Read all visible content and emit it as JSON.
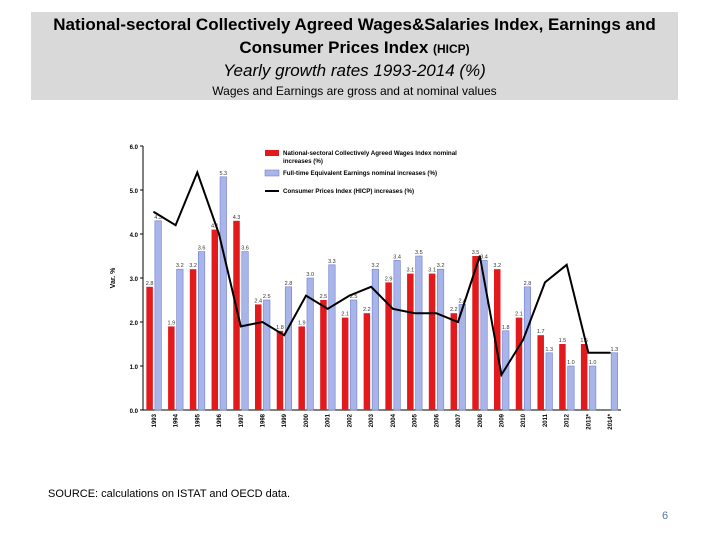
{
  "slide": {
    "title_line1": "National-sectoral Collectively Agreed Wages&Salaries Index, Earnings and",
    "title_line2": "Consumer Prices Index",
    "title_line2_small": "(HICP)",
    "subtitle": "Yearly growth rates 1993-2014 (%)",
    "note": "Wages and Earnings are gross and at nominal values",
    "source": "SOURCE: calculations on ISTAT and OECD data.",
    "page_number": "6"
  },
  "chart_data": {
    "type": "bar",
    "ylabel": "Var. %",
    "ylim": [
      0,
      6
    ],
    "yticks": [
      "0.0",
      "1.0",
      "2.0",
      "3.0",
      "4.0",
      "5.0",
      "6.0"
    ],
    "grid": false,
    "legend_position": "top-right",
    "categories": [
      "1993",
      "1994",
      "1995",
      "1996",
      "1997",
      "1998",
      "1999",
      "2000",
      "2001",
      "2002",
      "2003",
      "2004",
      "2005",
      "2006",
      "2007",
      "2008",
      "2009",
      "2010",
      "2011",
      "2012",
      "2013*",
      "2014*"
    ],
    "series": [
      {
        "name": "National-sectoral Collectively Agreed Wages Index nominal increases (%)",
        "type": "bar",
        "color": "#e31a1c",
        "values": [
          2.8,
          1.9,
          3.2,
          4.1,
          4.3,
          2.4,
          1.8,
          1.9,
          2.5,
          2.1,
          2.2,
          2.9,
          3.1,
          3.1,
          2.2,
          3.5,
          3.2,
          2.1,
          1.7,
          1.5,
          1.5,
          null
        ],
        "labels": [
          "2.8",
          "1.9",
          "3.2",
          "4.1",
          "4.3",
          "2.4",
          "1.8",
          "1.9",
          "2.5",
          "2.1",
          "2.2",
          "2.9",
          "3.1",
          "3.1",
          "2.2",
          "3.5",
          "3.2",
          "2.1",
          "1.7",
          "1.5",
          "1.5",
          ""
        ]
      },
      {
        "name": "Full-time Equivalent Earnings nominal increases (%)",
        "type": "bar",
        "color": "#a9b4e8",
        "values": [
          4.3,
          3.2,
          3.6,
          5.3,
          3.6,
          2.5,
          2.8,
          3.0,
          3.3,
          2.5,
          3.2,
          3.4,
          3.5,
          3.2,
          2.4,
          3.4,
          1.8,
          2.8,
          1.3,
          1.0,
          1.0,
          1.3
        ],
        "labels": [
          "4.3",
          "3.2",
          "3.6",
          "5.3",
          "3.6",
          "2.5",
          "2.8",
          "3.0",
          "3.3",
          "2.5",
          "3.2",
          "3.4",
          "3.5",
          "3.2",
          "2.4",
          "3.4",
          "1.8",
          "2.8",
          "1.3",
          "1.0",
          "1.0",
          "1.3"
        ]
      },
      {
        "name": "Consumer Prices Index (HICP) increases (%)",
        "type": "line",
        "color": "#000000",
        "values": [
          4.5,
          4.2,
          5.4,
          4.0,
          1.9,
          2.0,
          1.7,
          2.6,
          2.3,
          2.6,
          2.8,
          2.3,
          2.2,
          2.2,
          2.0,
          3.5,
          0.8,
          1.6,
          2.9,
          3.3,
          1.3,
          1.3
        ]
      }
    ]
  }
}
